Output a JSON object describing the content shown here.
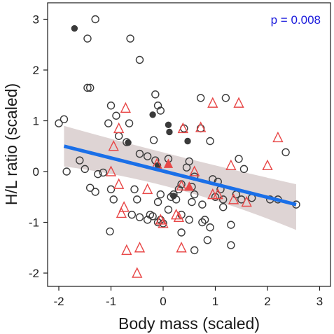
{
  "chart_data": {
    "type": "scatter",
    "title": "",
    "xlabel": "Body mass (scaled)",
    "ylabel": "H/L ratio (scaled)",
    "xlim": [
      -2.4,
      3.3
    ],
    "ylim": [
      -2.3,
      3.3
    ],
    "x_ticks": [
      -2,
      -1,
      0,
      1,
      2,
      3
    ],
    "y_ticks": [
      -2,
      -1,
      0,
      1,
      2,
      3
    ],
    "grid": false,
    "annotation": "p = 0.008",
    "colors": {
      "circles": "#3a3a3a",
      "triangles": "#e84848",
      "regression_line": "#1a6fe8",
      "confidence_band": "#c8b8b8",
      "annotation": "#1a1adc"
    },
    "series": [
      {
        "marker": "open-circle",
        "color": "#3a3a3a",
        "points": [
          [
            -1.3,
            3.0
          ],
          [
            -1.45,
            2.62
          ],
          [
            -0.63,
            2.62
          ],
          [
            -0.45,
            2.2
          ],
          [
            -1.45,
            1.65
          ],
          [
            -1.4,
            1.65
          ],
          [
            -0.15,
            1.52
          ],
          [
            0.72,
            1.45
          ],
          [
            1.2,
            1.45
          ],
          [
            -1.0,
            1.3
          ],
          [
            -0.1,
            1.3
          ],
          [
            -0.05,
            1.2
          ],
          [
            -0.9,
            1.1
          ],
          [
            -0.65,
            0.95
          ],
          [
            -2.0,
            0.95
          ],
          [
            -1.9,
            1.03
          ],
          [
            0.72,
            0.85
          ],
          [
            -1.05,
            0.95
          ],
          [
            0.4,
            0.85
          ],
          [
            0.9,
            0.6
          ],
          [
            -0.85,
            0.7
          ],
          [
            -0.7,
            0.58
          ],
          [
            -0.18,
            0.62
          ],
          [
            -0.45,
            0.35
          ],
          [
            -1.6,
            0.22
          ],
          [
            -1.5,
            0.05
          ],
          [
            -1.85,
            0.0
          ],
          [
            -0.3,
            0.3
          ],
          [
            -0.15,
            0.22
          ],
          [
            0.1,
            0.25
          ],
          [
            0.5,
            0.2
          ],
          [
            1.45,
            0.25
          ],
          [
            1.55,
            0.05
          ],
          [
            2.35,
            0.38
          ],
          [
            -1.25,
            -0.05
          ],
          [
            -1.15,
            -0.02
          ],
          [
            -1.4,
            -0.32
          ],
          [
            -1.3,
            -0.4
          ],
          [
            -1.0,
            -0.35
          ],
          [
            -0.95,
            -0.55
          ],
          [
            -0.55,
            -0.35
          ],
          [
            -0.5,
            -0.55
          ],
          [
            -0.05,
            -0.45
          ],
          [
            0.15,
            -0.5
          ],
          [
            0.2,
            -0.45
          ],
          [
            0.3,
            -0.35
          ],
          [
            0.35,
            -0.25
          ],
          [
            0.6,
            -0.1
          ],
          [
            0.45,
            0.08
          ],
          [
            0.55,
            -0.3
          ],
          [
            1.1,
            -0.35
          ],
          [
            1.4,
            -0.45
          ],
          [
            1.0,
            -0.5
          ],
          [
            0.95,
            -0.15
          ],
          [
            1.05,
            -0.2
          ],
          [
            -0.6,
            -0.85
          ],
          [
            -0.45,
            -0.9
          ],
          [
            -0.25,
            -0.85
          ],
          [
            -0.2,
            -0.88
          ],
          [
            -0.3,
            -0.95
          ],
          [
            0.1,
            -0.75
          ],
          [
            0.25,
            -0.55
          ],
          [
            0.35,
            -0.85
          ],
          [
            0.5,
            -0.95
          ],
          [
            0.6,
            -0.45
          ],
          [
            0.75,
            -0.65
          ],
          [
            0.8,
            -0.95
          ],
          [
            0.75,
            -1.0
          ],
          [
            0.9,
            -1.1
          ],
          [
            0.85,
            -1.35
          ],
          [
            1.15,
            -0.55
          ],
          [
            1.3,
            -1.05
          ],
          [
            1.3,
            -1.45
          ],
          [
            1.15,
            -0.7
          ],
          [
            1.5,
            -0.55
          ],
          [
            -0.05,
            -0.95
          ],
          [
            -0.1,
            -1.0
          ],
          [
            -0.1,
            -0.6
          ],
          [
            0.6,
            -1.55
          ],
          [
            0.35,
            -1.2
          ],
          [
            2.05,
            -0.55
          ],
          [
            2.2,
            -0.55
          ],
          [
            2.55,
            -0.65
          ],
          [
            -1.02,
            -1.18
          ],
          [
            1.7,
            -0.52
          ],
          [
            0.55,
            -0.6
          ],
          [
            0.0,
            -1.02
          ]
        ]
      },
      {
        "marker": "filled-circle",
        "color": "#3a3a3a",
        "points": [
          [
            -1.7,
            2.82
          ],
          [
            -0.2,
            1.12
          ],
          [
            0.1,
            0.92
          ],
          [
            0.12,
            0.78
          ],
          [
            -0.67,
            0.57
          ],
          [
            0.47,
            0.6
          ],
          [
            -0.1,
            0.12
          ],
          [
            0.2,
            -0.48
          ]
        ]
      },
      {
        "marker": "open-triangle",
        "color": "#e84848",
        "points": [
          [
            -0.72,
            1.25
          ],
          [
            0.95,
            1.35
          ],
          [
            1.45,
            1.35
          ],
          [
            -0.85,
            0.85
          ],
          [
            0.38,
            0.85
          ],
          [
            0.72,
            0.87
          ],
          [
            2.2,
            0.67
          ],
          [
            -0.95,
            0.5
          ],
          [
            -0.12,
            0.15
          ],
          [
            1.3,
            0.12
          ],
          [
            2.0,
            0.12
          ],
          [
            -1.0,
            0.0
          ],
          [
            0.6,
            0.0
          ],
          [
            -0.85,
            -0.25
          ],
          [
            0.35,
            -0.28
          ],
          [
            -0.3,
            -0.35
          ],
          [
            0.95,
            -0.45
          ],
          [
            1.05,
            -0.45
          ],
          [
            1.6,
            -0.6
          ],
          [
            1.35,
            -0.55
          ],
          [
            -0.75,
            -0.7
          ],
          [
            -0.8,
            -0.82
          ],
          [
            0.3,
            -0.9
          ],
          [
            0.25,
            -0.85
          ],
          [
            0.0,
            -1.02
          ],
          [
            -0.05,
            -0.95
          ],
          [
            0.35,
            -1.5
          ],
          [
            -0.7,
            -1.55
          ],
          [
            -0.45,
            -1.5
          ],
          [
            -0.5,
            -2.0
          ]
        ]
      },
      {
        "marker": "filled-triangle",
        "color": "#e84848",
        "points": [
          [
            0.1,
            0.15
          ],
          [
            0.5,
            -0.3
          ]
        ]
      }
    ],
    "regression": {
      "x_start": -1.9,
      "y_start": 0.5,
      "x_end": 2.55,
      "y_end": -0.65,
      "band_left_upper": 0.9,
      "band_left_lower": 0.1,
      "band_mid_upper": 0.18,
      "band_mid_lower": -0.08,
      "band_right_upper": -0.25,
      "band_right_lower": -1.15,
      "band_mid_x": 0.25
    }
  }
}
